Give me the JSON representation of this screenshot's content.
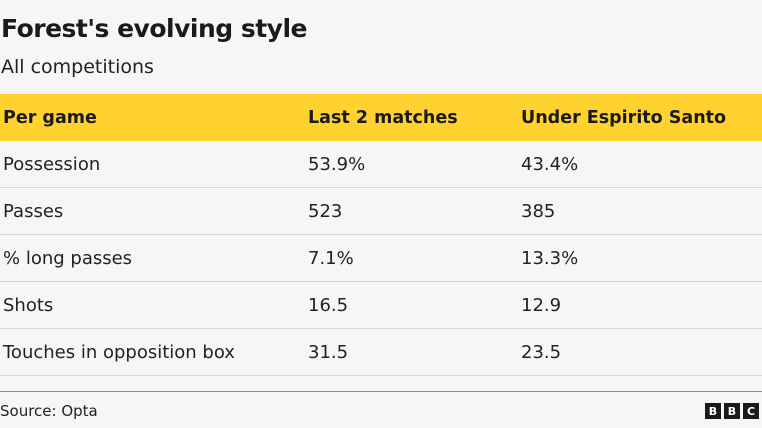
{
  "title": "Forest's evolving style",
  "subtitle": "All competitions",
  "table": {
    "headers": [
      "Per game",
      "Last 2 matches",
      "Under Espirito Santo"
    ],
    "rows": [
      [
        "Possession",
        "53.9%",
        "43.4%"
      ],
      [
        "Passes",
        "523",
        "385"
      ],
      [
        "% long passes",
        "7.1%",
        "13.3%"
      ],
      [
        "Shots",
        "16.5",
        "12.9"
      ],
      [
        "Touches in opposition box",
        "31.5",
        "23.5"
      ]
    ]
  },
  "footer": {
    "source": "Source: Opta",
    "logo_letters": [
      "B",
      "B",
      "C"
    ]
  },
  "colors": {
    "header_bg": "#ffd230",
    "background": "#f6f6f6"
  }
}
